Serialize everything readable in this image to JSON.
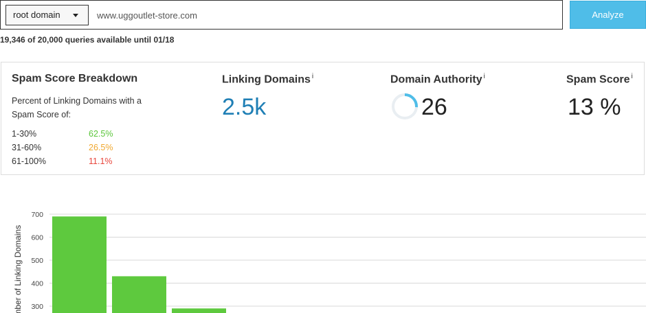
{
  "search": {
    "select_value": "root domain",
    "url_value": "www.uggoutlet-store.com",
    "analyze_label": "Analyze"
  },
  "quota_text": "19,346 of 20,000 queries available until 01/18",
  "breakdown": {
    "title": "Spam Score Breakdown",
    "description": "Percent of Linking Domains with a Spam Score of:",
    "rows": [
      {
        "range": "1-30%",
        "percent": "62.5%",
        "color": "#5cc63c"
      },
      {
        "range": "31-60%",
        "percent": "26.5%",
        "color": "#f0a830"
      },
      {
        "range": "61-100%",
        "percent": "11.1%",
        "color": "#e8463c"
      }
    ]
  },
  "linking_domains": {
    "title": "Linking Domains",
    "info": "i",
    "value": "2.5k",
    "color": "#1f7fb5"
  },
  "domain_authority": {
    "title": "Domain Authority",
    "info": "i",
    "value": "26",
    "ring_fraction": 0.26
  },
  "spam_score": {
    "title": "Spam Score",
    "info": "i",
    "value": "13 %"
  },
  "chart_data": {
    "type": "bar",
    "ylabel": "Number of Linking Domains",
    "ylim": [
      300,
      700
    ],
    "yticks": [
      700,
      600,
      500,
      400,
      300
    ],
    "bar_color": "#5ec93e",
    "values": [
      690,
      430,
      290
    ],
    "grid": true
  }
}
